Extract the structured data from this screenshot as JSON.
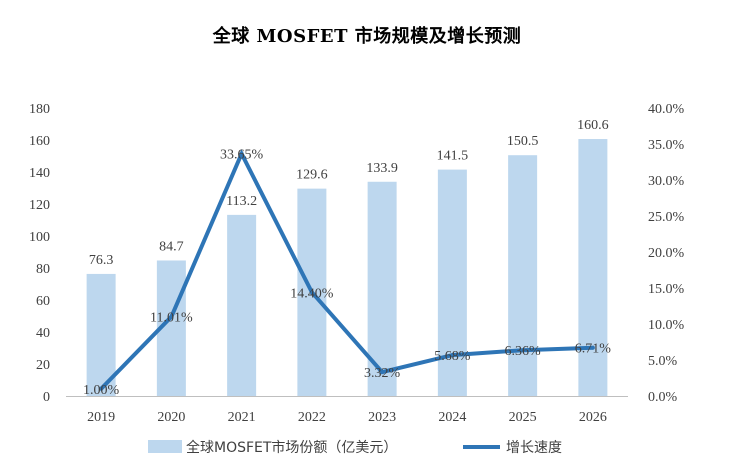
{
  "chart_data": {
    "type": "bar+line",
    "title": "全球 MOSFET 市场规模及增长预测",
    "categories": [
      "2019",
      "2020",
      "2021",
      "2022",
      "2023",
      "2024",
      "2025",
      "2026"
    ],
    "series": [
      {
        "name": "全球MOSFET市场份额（亿美元）",
        "type": "bar",
        "axis": "left",
        "values": [
          76.3,
          84.7,
          113.2,
          129.6,
          133.9,
          141.5,
          150.5,
          160.6
        ],
        "labels": [
          "76.3",
          "84.7",
          "113.2",
          "129.6",
          "133.9",
          "141.5",
          "150.5",
          "160.6"
        ],
        "color": "#bdd7ee"
      },
      {
        "name": "增长速度",
        "type": "line",
        "axis": "right",
        "values": [
          1.0,
          11.01,
          33.65,
          14.4,
          3.32,
          5.68,
          6.36,
          6.71
        ],
        "labels": [
          "1.00%",
          "11.01%",
          "33.65%",
          "14.40%",
          "3.32%",
          "5.68%",
          "6.36%",
          "6.71%"
        ],
        "color": "#2e75b6"
      }
    ],
    "y_left": {
      "range": [
        0,
        180
      ],
      "ticks": [
        0,
        20,
        40,
        60,
        80,
        100,
        120,
        140,
        160,
        180
      ],
      "tick_labels": [
        "0",
        "20",
        "40",
        "60",
        "80",
        "100",
        "120",
        "140",
        "160",
        "180"
      ]
    },
    "y_right": {
      "range": [
        0,
        40
      ],
      "ticks": [
        0,
        5,
        10,
        15,
        20,
        25,
        30,
        35,
        40
      ],
      "tick_labels": [
        "0.0%",
        "5.0%",
        "10.0%",
        "15.0%",
        "20.0%",
        "25.0%",
        "30.0%",
        "35.0%",
        "40.0%"
      ]
    },
    "grid": false,
    "legend_position": "bottom",
    "text_color": "#404040",
    "axis_color": "#bfbfbf"
  }
}
